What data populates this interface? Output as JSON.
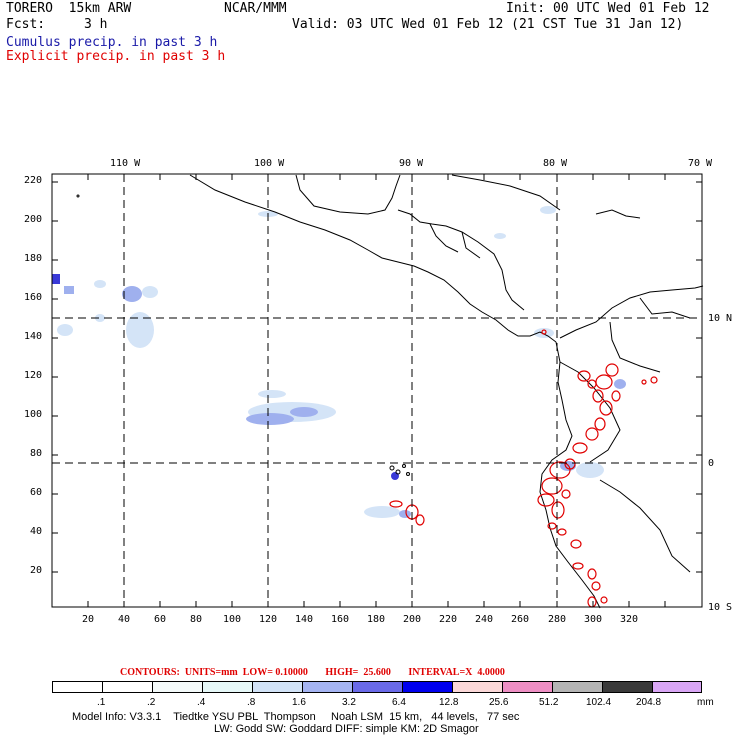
{
  "header": {
    "model": "TORERO  15km ARW",
    "org": "NCAR/MMM",
    "init": "Init: 00 UTC Wed 01 Feb 12",
    "fcst_label": "Fcst:",
    "fcst_value": "3 h",
    "valid": "Valid: 03 UTC Wed 01 Feb 12 (21 CST Tue 31 Jan 12)",
    "legend_cumulus": "Cumulus precip. in past 3 h",
    "legend_explicit": "Explicit precip. in past 3 h"
  },
  "map": {
    "lon_labels": [
      "110 W",
      "100 W",
      "90 W",
      "80 W",
      "70 W"
    ],
    "lat_labels": [
      "10 N",
      "0",
      "10 S"
    ],
    "x_ticks": [
      "20",
      "40",
      "60",
      "80",
      "100",
      "120",
      "140",
      "160",
      "180",
      "200",
      "220",
      "240",
      "260",
      "280",
      "300",
      "320"
    ],
    "y_ticks": [
      "20",
      "40",
      "60",
      "80",
      "100",
      "120",
      "140",
      "160",
      "180",
      "200",
      "220"
    ],
    "colors": {
      "cumulus_light": "#d4e4f7",
      "cumulus_mid": "#9fb0ee",
      "cumulus_dark": "#3a3ad8",
      "explicit_contour": "#e00000",
      "coastline": "#000000",
      "grid": "#000000"
    }
  },
  "footer": {
    "contours": "CONTOURS:  UNITS=mm  LOW= 0.10000       HIGH=  25.600       INTERVAL=X  4.0000",
    "colorbar_labels": [
      ".1",
      ".2",
      ".4",
      ".8",
      "1.6",
      "3.2",
      "6.4",
      "12.8",
      "25.6",
      "51.2",
      "102.4",
      "204.8"
    ],
    "colorbar_unit": "mm",
    "colorbar_colors": [
      "#ffffff",
      "#ffffff",
      "#f4fafa",
      "#e6f8f8",
      "#d2e3f7",
      "#a5b4f2",
      "#6a6ae8",
      "#0000ee",
      "#fbd8d8",
      "#ee8fc4",
      "#b4b4b4",
      "#3a3a3a",
      "#d9a6f5"
    ],
    "model_info_line1": "Model Info: V3.3.1    Tiedtke YSU PBL  Thompson     Noah LSM  15 km,   44 levels,   77 sec",
    "model_info_line2": "LW: Godd SW: Goddard DIFF: simple KM: 2D Smagor"
  }
}
